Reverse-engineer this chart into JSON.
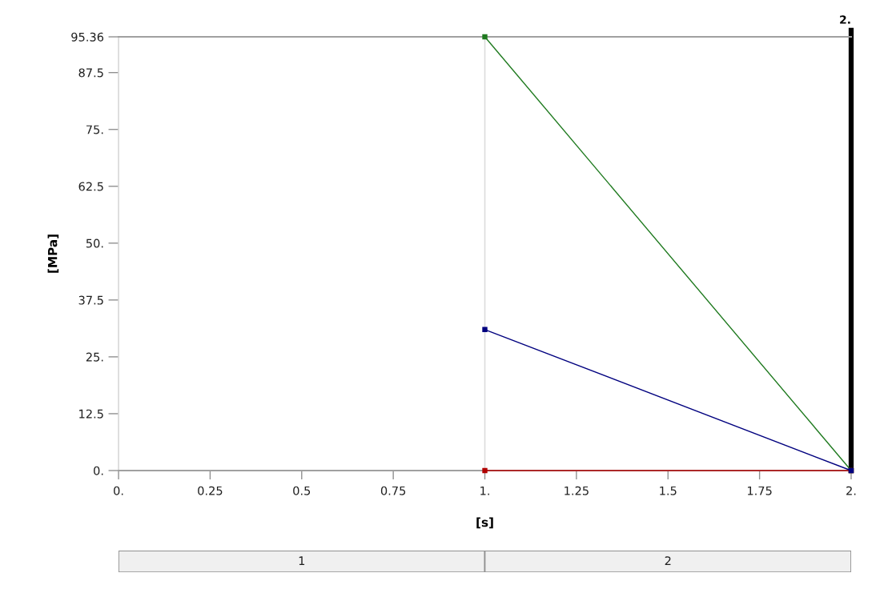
{
  "chart_data": {
    "type": "line",
    "xlabel": "[s]",
    "ylabel": "[MPa]",
    "x": [
      1,
      2
    ],
    "series": [
      {
        "color": "#1f7a1f",
        "values": [
          95.36,
          0
        ]
      },
      {
        "color": "#b00000",
        "values": [
          0,
          0
        ]
      },
      {
        "color": "#00007f",
        "values": [
          31,
          0
        ]
      }
    ],
    "xlim": [
      0,
      2
    ],
    "ylim": [
      0,
      95.36
    ],
    "xticks": [
      {
        "value": 0,
        "label": "0."
      },
      0.25,
      0.5,
      0.75,
      {
        "value": 1,
        "label": "1."
      },
      1.25,
      1.5,
      1.75,
      {
        "value": 2,
        "label": "2."
      }
    ],
    "yticks": [
      {
        "value": 0,
        "label": "0."
      },
      12.5,
      {
        "value": 25,
        "label": "25."
      },
      37.5,
      {
        "value": 50,
        "label": "50."
      },
      62.5,
      {
        "value": 75,
        "label": "75."
      },
      87.5,
      95.36
    ],
    "x2lim": [
      0,
      2
    ],
    "x2ticks": [
      {
        "value": 0.5,
        "label": "1"
      },
      {
        "value": 1.5,
        "label": "2"
      }
    ],
    "marker": "square",
    "grid": false,
    "ref_lines": [
      {
        "axis": "x",
        "value": 1,
        "color": "#dcdcdc"
      },
      {
        "axis": "x",
        "value": 2,
        "label": "2.",
        "color": "#000000"
      }
    ]
  }
}
